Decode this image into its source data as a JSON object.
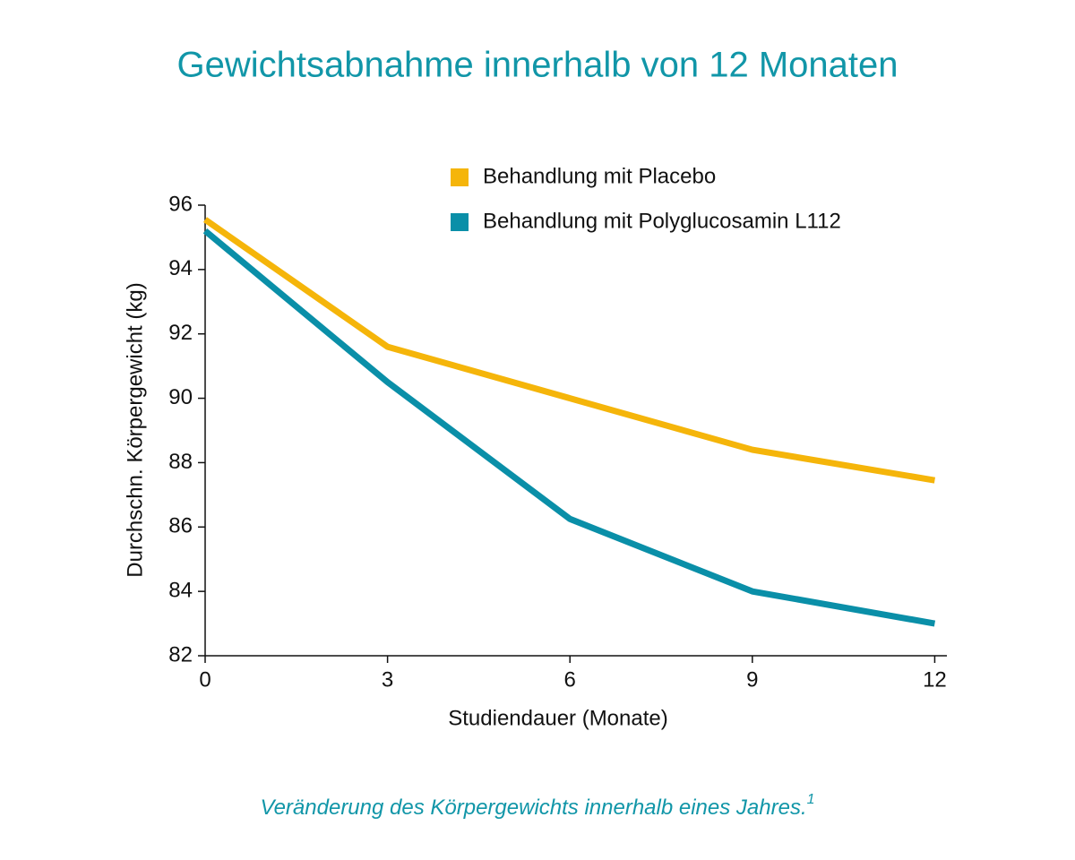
{
  "chart_data": {
    "type": "line",
    "title": "Gewichtsabnahme innerhalb von 12 Monaten",
    "x_label": "Studiendauer (Monate)",
    "y_label": "Durchschn. Körpergewicht (kg)",
    "x": [
      0,
      3,
      6,
      9,
      12
    ],
    "series": [
      {
        "name": "Behandlung mit Placebo",
        "color": "#f5b50a",
        "values": [
          95.55,
          91.6,
          90.0,
          88.4,
          87.45
        ]
      },
      {
        "name": "Behandlung mit Polyglucosamin L112",
        "color": "#0a8fa8",
        "values": [
          95.2,
          90.5,
          86.25,
          84.0,
          83.0
        ]
      }
    ],
    "xlim": [
      0,
      12.2
    ],
    "xticks": [
      0,
      3,
      6,
      9,
      12
    ],
    "ylim": [
      82,
      96
    ],
    "yticks": [
      82,
      84,
      86,
      88,
      90,
      92,
      94,
      96
    ],
    "legend": "top",
    "footnote": "Veränderung des Körpergewichts innerhalb eines Jahres.",
    "footnote_ref": "1"
  }
}
